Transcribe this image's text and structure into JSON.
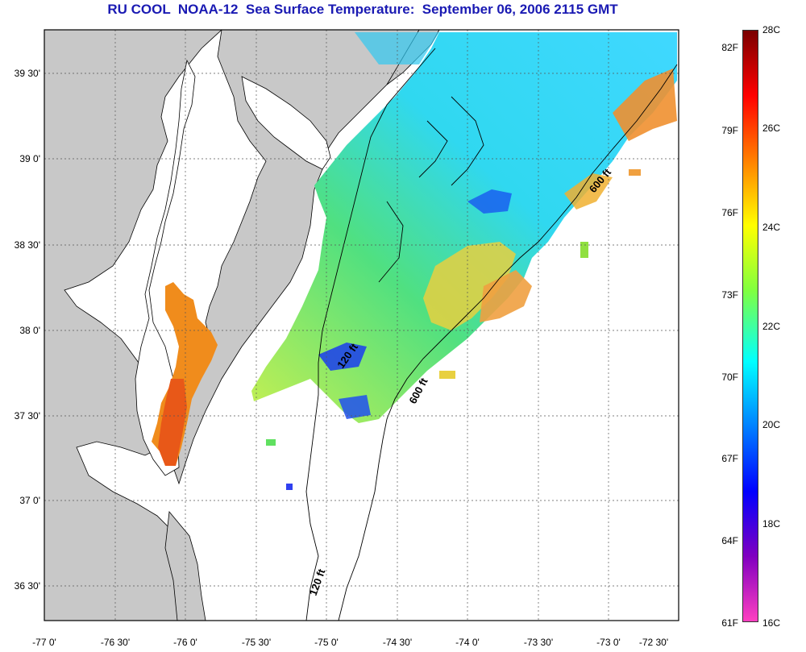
{
  "title": "RU COOL  NOAA-12  Sea Surface Temperature:  September 06, 2006 2115 GMT",
  "lat_labels": [
    "39 30'",
    "39 0'",
    "38 30'",
    "38 0'",
    "37 30'",
    "37 0'",
    "36 30'"
  ],
  "lon_labels": [
    "-77 0'",
    "-76 30'",
    "-76 0'",
    "-75 30'",
    "-75 0'",
    "-74 30'",
    "-74 0'",
    "-73 30'",
    "-73 0'",
    "-72 30'"
  ],
  "colorbar": {
    "fahrenheit": [
      "82F",
      "79F",
      "76F",
      "73F",
      "70F",
      "67F",
      "64F",
      "61F"
    ],
    "celsius": [
      "28C",
      "26C",
      "24C",
      "22C",
      "20C",
      "18C",
      "16C"
    ],
    "stops": [
      "#7a0000",
      "#ff0000",
      "#ff8000",
      "#ffff00",
      "#80ff40",
      "#00ffff",
      "#0080ff",
      "#0000ff",
      "#8000c0",
      "#ff40c0"
    ]
  },
  "contours": {
    "label_120_a": "120 ft",
    "label_120_b": "120 ft",
    "label_600_a": "600 ft",
    "label_600_b": "600 ft"
  },
  "colors": {
    "land": "#c8c8c8",
    "water_nodata": "#ffffff",
    "title": "#1a1ab3"
  }
}
